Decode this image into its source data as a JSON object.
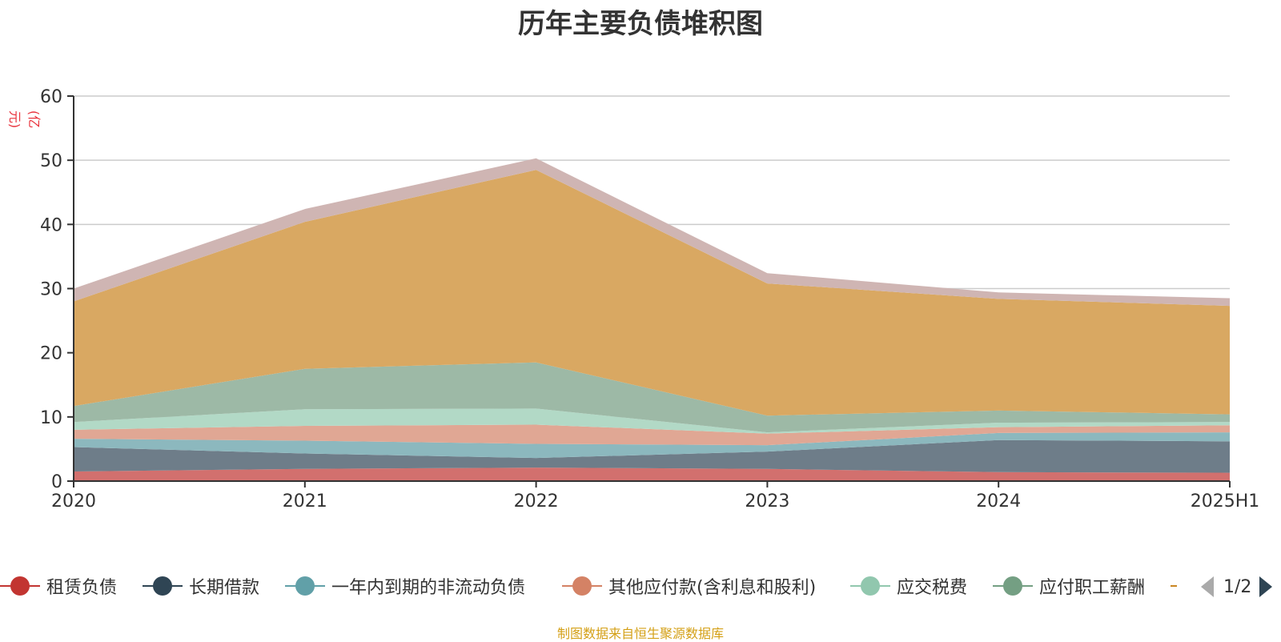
{
  "title": "历年主要负债堆积图",
  "unit_label": "(亿元)",
  "source_note": "制图数据来自恒生聚源数据库",
  "legend": {
    "items": [
      {
        "label": "租赁负债",
        "color": "#c23531"
      },
      {
        "label": "长期借款",
        "color": "#2f4554"
      },
      {
        "label": "一年内到期的非流动负债",
        "color": "#61a0a8"
      },
      {
        "label": "其他应付款(含利息和股利)",
        "color": "#d48265"
      },
      {
        "label": "应交税费",
        "color": "#91c7ae"
      },
      {
        "label": "应付职工薪酬",
        "color": "#749f83"
      },
      {
        "label": "",
        "color": "#ca8622"
      }
    ],
    "page": "1/2"
  },
  "chart_data": {
    "type": "area",
    "stacked": true,
    "x": [
      "2020",
      "2021",
      "2022",
      "2023",
      "2024",
      "2025H1"
    ],
    "ylim": [
      0,
      60
    ],
    "yticks": [
      0,
      10,
      20,
      30,
      40,
      50,
      60
    ],
    "grid": true,
    "series": [
      {
        "name": "租赁负债",
        "color": "#d2706e",
        "values": [
          1.5,
          1.9,
          2.1,
          1.9,
          1.4,
          1.3
        ]
      },
      {
        "name": "长期借款",
        "color": "#6e7d89",
        "values": [
          3.8,
          2.4,
          1.5,
          2.7,
          5.0,
          4.9
        ]
      },
      {
        "name": "一年内到期的非流动负债",
        "color": "#8cb8be",
        "values": [
          1.3,
          2.0,
          2.2,
          1.0,
          1.1,
          1.4
        ]
      },
      {
        "name": "其他应付款(含利息和股利)",
        "color": "#e0a794",
        "values": [
          1.4,
          2.3,
          3.0,
          1.8,
          0.9,
          1.1
        ]
      },
      {
        "name": "应交税费",
        "color": "#b2d9c6",
        "values": [
          1.2,
          2.6,
          2.5,
          0.2,
          0.7,
          0.5
        ]
      },
      {
        "name": "应付职工薪酬",
        "color": "#9db9a6",
        "values": [
          2.5,
          6.3,
          7.2,
          2.6,
          1.9,
          1.2
        ]
      },
      {
        "name": "",
        "color": "#d9a862",
        "values": [
          16.3,
          22.9,
          30.0,
          20.6,
          17.4,
          16.9
        ]
      },
      {
        "name": "",
        "color": "#cfb5b3",
        "values": [
          2.0,
          2.0,
          1.8,
          1.6,
          1.0,
          1.2
        ]
      }
    ]
  }
}
